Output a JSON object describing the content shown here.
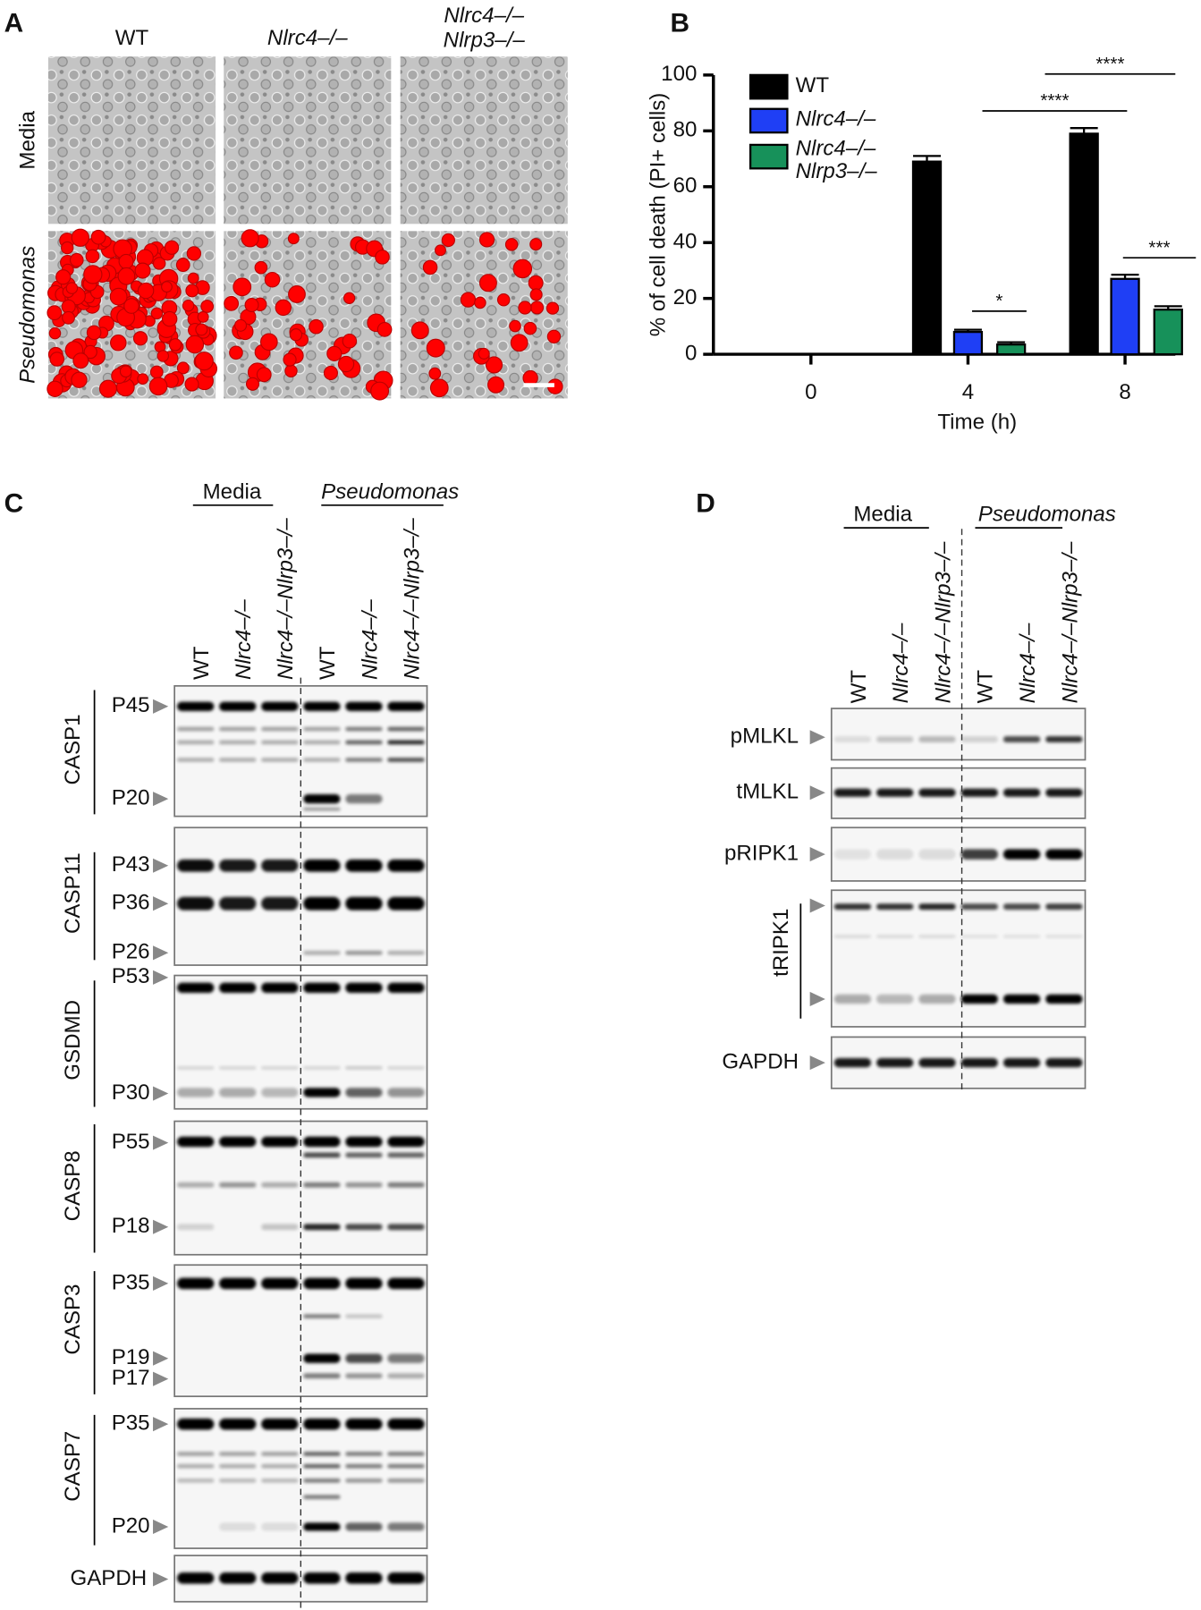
{
  "panel_a": {
    "label": "A",
    "columns": [
      [
        "WT"
      ],
      [
        "Nlrc4–/–"
      ],
      [
        "Nlrc4–/–",
        "Nlrp3–/–"
      ]
    ],
    "rows": [
      "Media",
      "Pseudomonas"
    ]
  },
  "chart_data": {
    "type": "bar",
    "panel_label": "B",
    "y_label": "% of cell death (PI+ cells)",
    "x_label": "Time (h)",
    "categories": [
      "0",
      "4",
      "8"
    ],
    "series": [
      {
        "name": "WT",
        "color": "#000000",
        "values": [
          0,
          69,
          79
        ],
        "errors": [
          null,
          2,
          2
        ]
      },
      {
        "name": "Nlrc4–/–",
        "color": "#1f3ff5",
        "values": [
          0,
          8,
          27
        ],
        "errors": [
          null,
          0.8,
          1.5
        ]
      },
      {
        "name": "Nlrc4–/– Nlrp3–/–",
        "color": "#17915a",
        "values": [
          0,
          3.5,
          16
        ],
        "errors": [
          null,
          0.8,
          1.2
        ]
      }
    ],
    "ylim": [
      0,
      100
    ],
    "yticks": [
      0,
      20,
      40,
      60,
      80,
      100
    ],
    "annotations": [
      "*",
      "****",
      "****",
      "***"
    ]
  },
  "panel_c": {
    "label": "C",
    "groups": [
      "Media",
      "Pseudomonas"
    ],
    "lanes": [
      "WT",
      "Nlrc4–/–",
      "Nlrc4–/–Nlrp3–/–",
      "WT",
      "Nlrc4–/–",
      "Nlrc4–/–Nlrp3–/–"
    ],
    "blots": [
      {
        "name": "CASP1",
        "markers": [
          "P45",
          "P20"
        ]
      },
      {
        "name": "CASP11",
        "markers": [
          "P43",
          "P36",
          "P26"
        ]
      },
      {
        "name": "GSDMD",
        "markers": [
          "P53",
          "P30"
        ]
      },
      {
        "name": "CASP8",
        "markers": [
          "P55",
          "P18"
        ]
      },
      {
        "name": "CASP3",
        "markers": [
          "P35",
          "P19",
          "P17"
        ]
      },
      {
        "name": "CASP7",
        "markers": [
          "P35",
          "P20"
        ]
      },
      {
        "name": "GAPDH",
        "markers": []
      }
    ]
  },
  "panel_d": {
    "label": "D",
    "groups": [
      "Media",
      "Pseudomonas"
    ],
    "lanes": [
      "WT",
      "Nlrc4–/–",
      "Nlrc4–/–Nlrp3–/–",
      "WT",
      "Nlrc4–/–",
      "Nlrc4–/–Nlrp3–/–"
    ],
    "blots": [
      {
        "name": "pMLKL"
      },
      {
        "name": "tMLKL"
      },
      {
        "name": "pRIPK1"
      },
      {
        "name": "tRIPK1"
      },
      {
        "name": "GAPDH"
      }
    ]
  }
}
